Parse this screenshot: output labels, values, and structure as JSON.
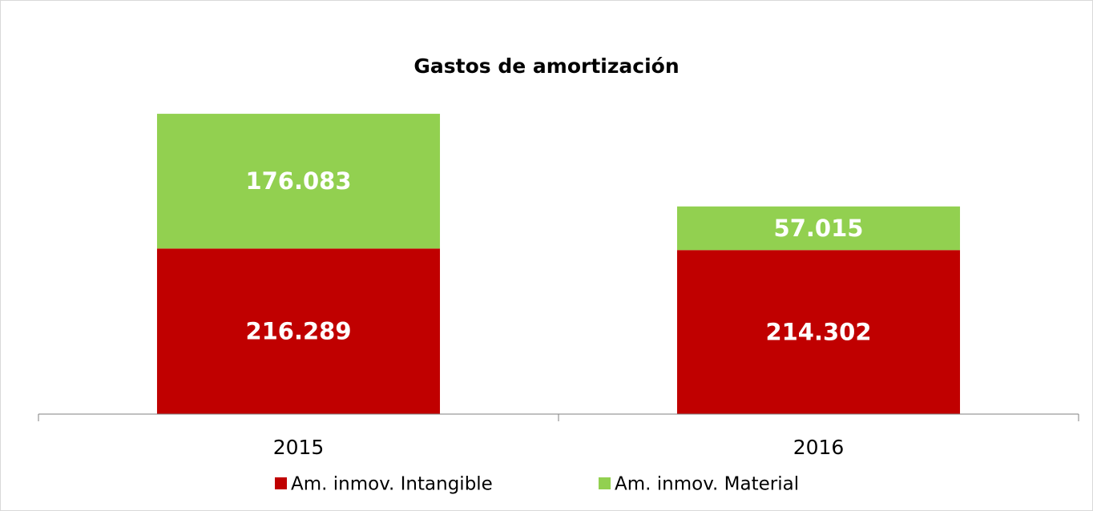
{
  "chart_data": {
    "type": "stacked_bar",
    "title": "Gastos de amortización",
    "categories": [
      "2015",
      "2016"
    ],
    "series": [
      {
        "name": "Am. inmov. Intangible",
        "color": "#c00000",
        "values": [
          216289,
          214302
        ],
        "value_labels": [
          "216.289",
          "214.302"
        ]
      },
      {
        "name": "Am. inmov. Material",
        "color": "#92d050",
        "values": [
          176083,
          57015
        ],
        "value_labels": [
          "176.083",
          "57.015"
        ]
      }
    ],
    "ylim": [
      0,
      450000
    ],
    "legend": "bottom"
  }
}
